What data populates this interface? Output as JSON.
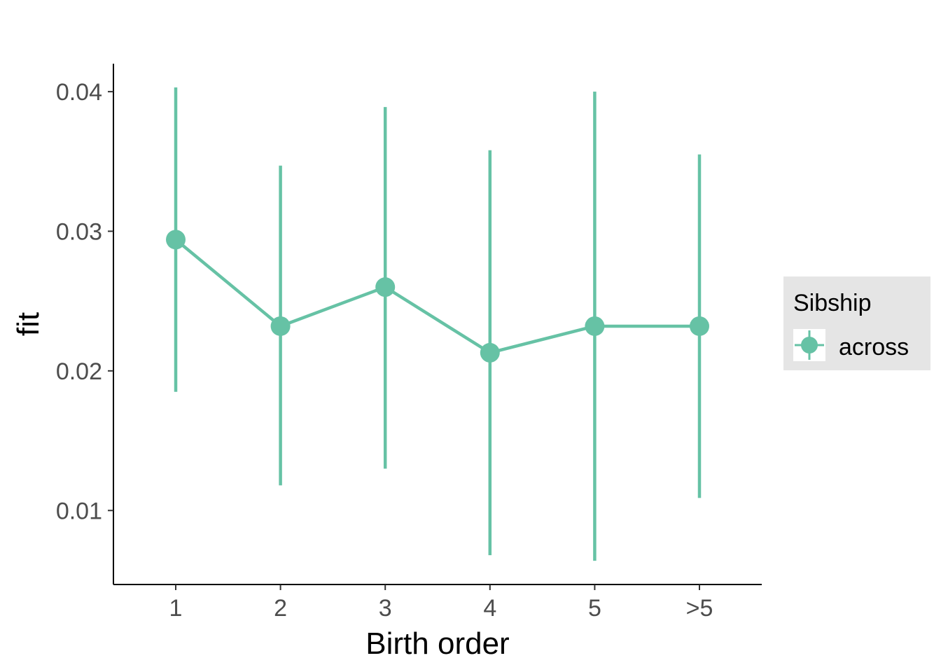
{
  "chart_data": {
    "type": "line",
    "xlabel": "Birth order",
    "ylabel": "fit",
    "categories": [
      "1",
      "2",
      "3",
      "4",
      "5",
      ">5"
    ],
    "ylim": [
      0.0047,
      0.042
    ],
    "y_ticks": [
      0.01,
      0.02,
      0.03,
      0.04
    ],
    "y_tick_labels": [
      "0.01",
      "0.02",
      "0.03",
      "0.04"
    ],
    "grid": false,
    "legend": {
      "title": "Sibship",
      "placement": "right",
      "entries": [
        "across"
      ]
    },
    "series": [
      {
        "name": "across",
        "color": "#66c2a5",
        "values": [
          0.0294,
          0.0232,
          0.026,
          0.0213,
          0.0232,
          0.0232
        ],
        "lower": [
          0.0185,
          0.0118,
          0.013,
          0.0068,
          0.0064,
          0.0109
        ],
        "upper": [
          0.0403,
          0.0347,
          0.0389,
          0.0358,
          0.04,
          0.0355
        ]
      }
    ]
  }
}
